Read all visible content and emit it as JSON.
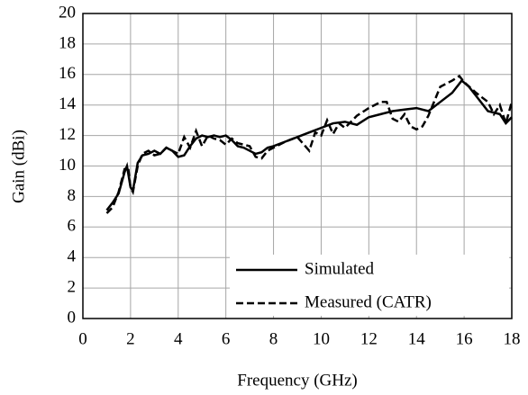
{
  "chart_data": {
    "type": "line",
    "x_label": "Frequency (GHz)",
    "y_label": "Gain (dBi)",
    "xlim": [
      0,
      18
    ],
    "xticks": [
      0,
      2,
      4,
      6,
      8,
      10,
      12,
      14,
      16,
      18
    ],
    "ylim": [
      0,
      20
    ],
    "yticks": [
      0,
      2,
      4,
      6,
      8,
      10,
      12,
      14,
      16,
      18,
      20
    ],
    "grid": true,
    "legend": "lower right",
    "series": [
      {
        "name": "Simulated",
        "color": "#000000",
        "dashed": false,
        "x": [
          1,
          1.25,
          1.5,
          1.75,
          1.85,
          2,
          2.1,
          2.3,
          2.5,
          2.75,
          3,
          3.25,
          3.5,
          3.75,
          4,
          4.25,
          4.5,
          4.75,
          5,
          5.25,
          5.5,
          5.75,
          6,
          6.25,
          6.5,
          6.75,
          7,
          7.25,
          7.5,
          7.75,
          8,
          8.5,
          9,
          9.5,
          10,
          10.5,
          11,
          11.5,
          12,
          12.5,
          13,
          13.5,
          14,
          14.5,
          15,
          15.5,
          15.9,
          16.2,
          16.5,
          17,
          17.5,
          17.75,
          18
        ],
        "values": [
          7.1,
          7.6,
          8.2,
          9.6,
          10.0,
          8.6,
          8.4,
          10.2,
          10.7,
          10.8,
          11.0,
          10.8,
          11.2,
          11.0,
          10.6,
          10.7,
          11.3,
          11.8,
          12.0,
          11.9,
          12.0,
          11.9,
          12.0,
          11.7,
          11.3,
          11.2,
          11.0,
          10.8,
          10.9,
          11.2,
          11.3,
          11.6,
          11.9,
          12.2,
          12.5,
          12.8,
          12.9,
          12.7,
          13.2,
          13.4,
          13.6,
          13.7,
          13.8,
          13.6,
          14.2,
          14.8,
          15.6,
          15.2,
          14.6,
          13.6,
          13.4,
          12.8,
          13.2
        ]
      },
      {
        "name": "Measured (CATR)",
        "color": "#000000",
        "dashed": true,
        "x": [
          1,
          1.25,
          1.5,
          1.75,
          1.9,
          2,
          2.1,
          2.3,
          2.5,
          2.75,
          3,
          3.25,
          3.5,
          3.75,
          4,
          4.25,
          4.5,
          4.75,
          5,
          5.25,
          5.5,
          5.75,
          6,
          6.25,
          6.5,
          7,
          7.25,
          7.5,
          7.75,
          8,
          8.5,
          9,
          9.5,
          9.75,
          10,
          10.25,
          10.5,
          10.75,
          11,
          11.5,
          12,
          12.5,
          12.75,
          13,
          13.25,
          13.5,
          13.75,
          14,
          14.25,
          14.5,
          15,
          15.5,
          15.8,
          16,
          16.5,
          17,
          17.25,
          17.5,
          17.75,
          18
        ],
        "values": [
          6.9,
          7.3,
          8.3,
          9.8,
          9.9,
          8.6,
          8.3,
          10.0,
          10.8,
          11.0,
          10.7,
          10.8,
          11.2,
          11.0,
          10.8,
          11.9,
          11.2,
          12.3,
          11.3,
          12.0,
          11.8,
          11.7,
          11.4,
          11.8,
          11.5,
          11.3,
          10.6,
          10.5,
          11.0,
          11.2,
          11.6,
          11.9,
          11.0,
          12.2,
          12.0,
          13.0,
          12.1,
          12.8,
          12.5,
          13.3,
          13.8,
          14.2,
          14.2,
          13.1,
          12.9,
          13.4,
          12.6,
          12.4,
          12.6,
          13.3,
          15.2,
          15.6,
          15.9,
          15.5,
          14.8,
          14.2,
          13.4,
          14.0,
          12.8,
          14.2
        ]
      }
    ]
  }
}
